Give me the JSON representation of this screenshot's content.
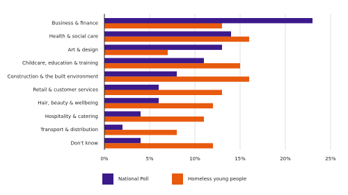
{
  "chart_data": {
    "type": "bar",
    "orientation": "horizontal",
    "categories": [
      "Business & finance",
      "Health & social care",
      "Art & design",
      "Childcare, education & training",
      "Construction & the built environment",
      "Retail & customer services",
      "Hair, beauty & wellbeing",
      "Hospitality & catering",
      "Transport & distribution",
      "Don't know"
    ],
    "series": [
      {
        "name": "National Poll",
        "color": "#3c1a8c",
        "values": [
          23,
          14,
          13,
          11,
          8,
          6,
          6,
          4,
          2,
          4
        ]
      },
      {
        "name": "Homeless young people",
        "color": "#e85a0e",
        "values": [
          13,
          16,
          7,
          15,
          16,
          13,
          12,
          11,
          8,
          12
        ]
      }
    ],
    "xlim": [
      0,
      25
    ],
    "xticks": [
      {
        "value": 0,
        "label": "0%"
      },
      {
        "value": 5,
        "label": "5%"
      },
      {
        "value": 10,
        "label": "10%"
      },
      {
        "value": 15,
        "label": "15%"
      },
      {
        "value": 20,
        "label": "20%"
      },
      {
        "value": 25,
        "label": "25%"
      }
    ],
    "grid": true
  }
}
